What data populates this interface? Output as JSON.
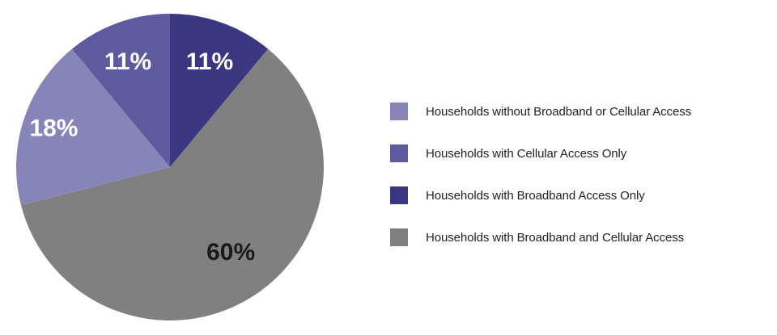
{
  "chart_data": {
    "type": "pie",
    "slices": [
      {
        "label": "Households with Broadband Access Only",
        "value": 11,
        "display": "11%",
        "color": "#3a3680",
        "label_color": "#ffffff"
      },
      {
        "label": "Households with Broadband and Cellular Access",
        "value": 60,
        "display": "60%",
        "color": "#808080",
        "label_color": "#1a1a1a"
      },
      {
        "label": "Households without Broadband or Cellular Access",
        "value": 18,
        "display": "18%",
        "color": "#8785b8",
        "label_color": "#ffffff"
      },
      {
        "label": "Households with Cellular Access Only",
        "value": 11,
        "display": "11%",
        "color": "#5e5a9e",
        "label_color": "#ffffff"
      }
    ],
    "legend": [
      {
        "label": "Households without Broadband or Cellular Access",
        "color": "#8785b8"
      },
      {
        "label": "Households with Cellular Access Only",
        "color": "#5e5a9e"
      },
      {
        "label": "Households with Broadband Access Only",
        "color": "#3a3680"
      },
      {
        "label": "Households with Broadband and Cellular Access",
        "color": "#808080"
      }
    ],
    "legend_position": "right",
    "start_angle": "top",
    "direction": "clockwise"
  }
}
